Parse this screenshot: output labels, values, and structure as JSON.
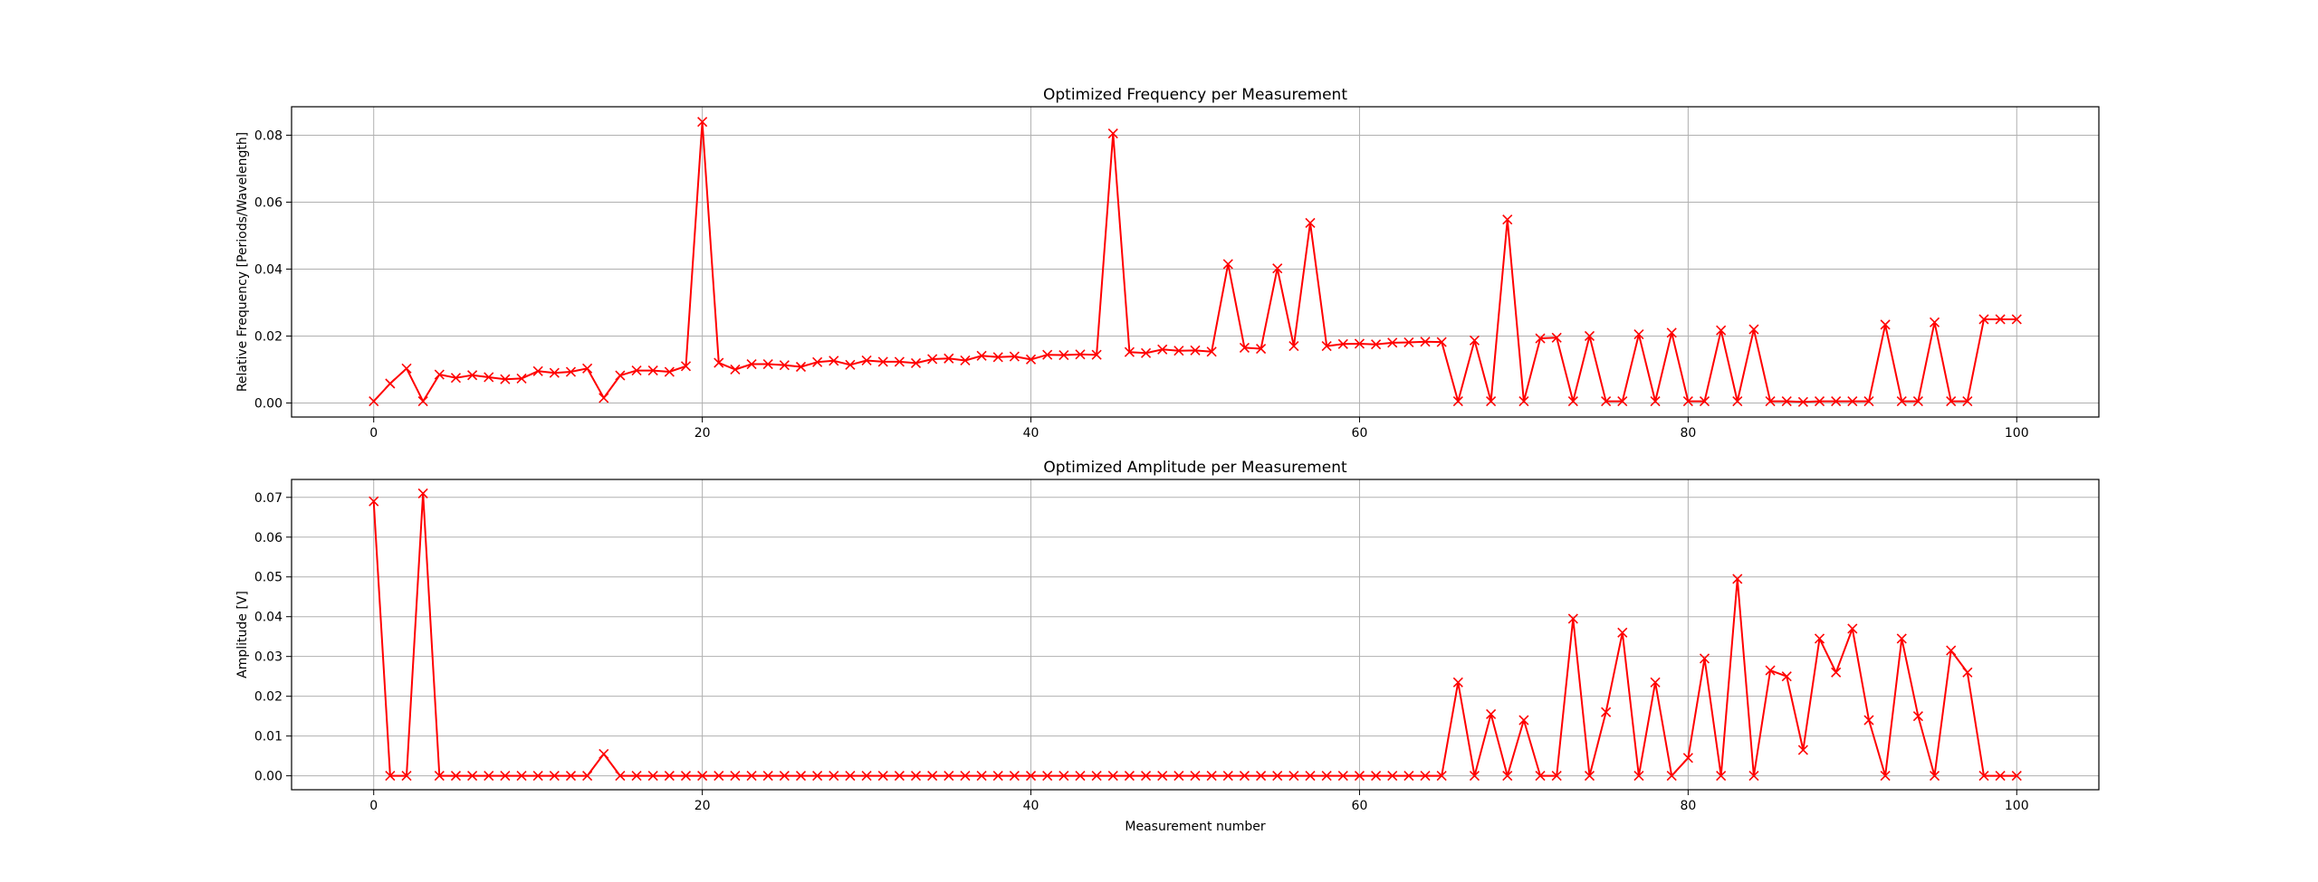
{
  "chart_data": [
    {
      "type": "line",
      "title": "Optimized Frequency per Measurement",
      "xlabel": "",
      "ylabel": "Relative Frequency [Periods/Wavelength]",
      "xlim": [
        -5,
        105
      ],
      "ylim": [
        -0.0042,
        0.0885
      ],
      "grid": true,
      "marker": "x",
      "color": "#ff0000",
      "xticks": [
        "0",
        "20",
        "40",
        "60",
        "80",
        "100"
      ],
      "yticks": [
        "0.00",
        "0.02",
        "0.04",
        "0.06",
        "0.08"
      ],
      "x": [
        0,
        1,
        2,
        3,
        4,
        5,
        6,
        7,
        8,
        9,
        10,
        11,
        12,
        13,
        14,
        15,
        16,
        17,
        18,
        19,
        20,
        21,
        22,
        23,
        24,
        25,
        26,
        27,
        28,
        29,
        30,
        31,
        32,
        33,
        34,
        35,
        36,
        37,
        38,
        39,
        40,
        41,
        42,
        43,
        44,
        45,
        46,
        47,
        48,
        49,
        50,
        51,
        52,
        53,
        54,
        55,
        56,
        57,
        58,
        59,
        60,
        61,
        62,
        63,
        64,
        65,
        66,
        67,
        68,
        69,
        70,
        71,
        72,
        73,
        74,
        75,
        76,
        77,
        78,
        79,
        80,
        81,
        82,
        83,
        84,
        85,
        86,
        87,
        88,
        89,
        90,
        91,
        92,
        93,
        94,
        95,
        96,
        97,
        98,
        99,
        100
      ],
      "values": [
        0.0005,
        0.0058,
        0.0103,
        0.0005,
        0.0085,
        0.0075,
        0.0083,
        0.0077,
        0.0071,
        0.0073,
        0.0095,
        0.009,
        0.0093,
        0.0103,
        0.0015,
        0.0082,
        0.0097,
        0.0097,
        0.0093,
        0.011,
        0.084,
        0.012,
        0.01,
        0.0116,
        0.0116,
        0.0113,
        0.0108,
        0.0122,
        0.0126,
        0.0114,
        0.0127,
        0.0123,
        0.0123,
        0.0119,
        0.0131,
        0.0133,
        0.0127,
        0.0141,
        0.0137,
        0.0139,
        0.013,
        0.0144,
        0.0143,
        0.0145,
        0.0144,
        0.0805,
        0.0152,
        0.0149,
        0.016,
        0.0156,
        0.0157,
        0.0153,
        0.0415,
        0.0165,
        0.0162,
        0.0402,
        0.017,
        0.0538,
        0.017,
        0.0176,
        0.0177,
        0.0175,
        0.018,
        0.0181,
        0.0183,
        0.0182,
        0.0005,
        0.0187,
        0.0005,
        0.0548,
        0.0005,
        0.0193,
        0.0195,
        0.0005,
        0.02,
        0.0005,
        0.0005,
        0.0205,
        0.0005,
        0.021,
        0.0005,
        0.0005,
        0.0217,
        0.0005,
        0.022,
        0.0005,
        0.0005,
        0.0003,
        0.0005,
        0.0005,
        0.0005,
        0.0005,
        0.0234,
        0.0005,
        0.0005,
        0.0241,
        0.0005,
        0.0005,
        0.025,
        0.025,
        0.025
      ]
    },
    {
      "type": "line",
      "title": "Optimized Amplitude per Measurement",
      "xlabel": "Measurement number",
      "ylabel": "Amplitude [V]",
      "xlim": [
        -5,
        105
      ],
      "ylim": [
        -0.0035,
        0.0745
      ],
      "grid": true,
      "marker": "x",
      "color": "#ff0000",
      "xticks": [
        "0",
        "20",
        "40",
        "60",
        "80",
        "100"
      ],
      "yticks": [
        "0.00",
        "0.01",
        "0.02",
        "0.03",
        "0.04",
        "0.05",
        "0.06",
        "0.07"
      ],
      "x": [
        0,
        1,
        2,
        3,
        4,
        5,
        6,
        7,
        8,
        9,
        10,
        11,
        12,
        13,
        14,
        15,
        16,
        17,
        18,
        19,
        20,
        21,
        22,
        23,
        24,
        25,
        26,
        27,
        28,
        29,
        30,
        31,
        32,
        33,
        34,
        35,
        36,
        37,
        38,
        39,
        40,
        41,
        42,
        43,
        44,
        45,
        46,
        47,
        48,
        49,
        50,
        51,
        52,
        53,
        54,
        55,
        56,
        57,
        58,
        59,
        60,
        61,
        62,
        63,
        64,
        65,
        66,
        67,
        68,
        69,
        70,
        71,
        72,
        73,
        74,
        75,
        76,
        77,
        78,
        79,
        80,
        81,
        82,
        83,
        84,
        85,
        86,
        87,
        88,
        89,
        90,
        91,
        92,
        93,
        94,
        95,
        96,
        97,
        98,
        99,
        100
      ],
      "values": [
        0.069,
        0.0,
        0.0,
        0.071,
        0.0,
        0.0,
        0.0,
        0.0,
        0.0,
        0.0,
        0.0,
        0.0,
        0.0,
        0.0,
        0.0055,
        0.0,
        0.0,
        0.0,
        0.0,
        0.0,
        0.0,
        0.0,
        0.0,
        0.0,
        0.0,
        0.0,
        0.0,
        0.0,
        0.0,
        0.0,
        0.0,
        0.0,
        0.0,
        0.0,
        0.0,
        0.0,
        0.0,
        0.0,
        0.0,
        0.0,
        0.0,
        0.0,
        0.0,
        0.0,
        0.0,
        0.0,
        0.0,
        0.0,
        0.0,
        0.0,
        0.0,
        0.0,
        0.0,
        0.0,
        0.0,
        0.0,
        0.0,
        0.0,
        0.0,
        0.0,
        0.0,
        0.0,
        0.0,
        0.0,
        0.0,
        0.0,
        0.0235,
        0.0,
        0.0155,
        0.0,
        0.014,
        0.0,
        0.0,
        0.0395,
        0.0,
        0.016,
        0.036,
        0.0,
        0.0235,
        0.0,
        0.0045,
        0.0295,
        0.0,
        0.0495,
        0.0,
        0.0265,
        0.025,
        0.0065,
        0.0345,
        0.026,
        0.037,
        0.014,
        0.0,
        0.0345,
        0.015,
        0.0,
        0.0315,
        0.026,
        0.0,
        0.0,
        0.0
      ]
    }
  ]
}
